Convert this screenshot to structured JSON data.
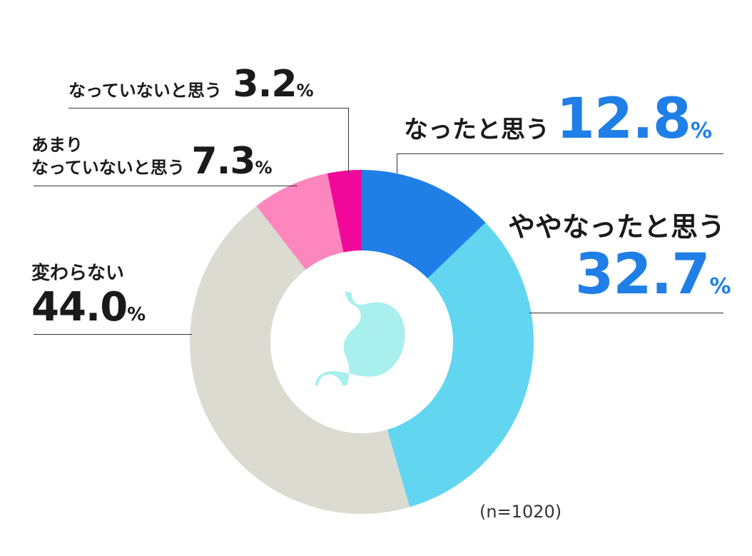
{
  "chart_data": {
    "type": "donut",
    "title": "",
    "note": "(n=1020)",
    "unit_symbol": "%",
    "slices": [
      {
        "label": "なったと思う",
        "value": 12.8,
        "color": "#1f7fe6"
      },
      {
        "label": "ややなったと思う",
        "value": 32.7,
        "color": "#62d6f0"
      },
      {
        "label": "変わらない",
        "value": 44.0,
        "color": "#dcdbd1"
      },
      {
        "label": "あまり\nなっていないと思う",
        "value": 7.3,
        "color": "#fc86bd"
      },
      {
        "label": "なっていないと思う",
        "value": 3.2,
        "color": "#f2079b"
      }
    ],
    "center_icon": "stomach-icon",
    "center_icon_color": "#a9efee"
  },
  "labels": {
    "s0_text": "なったと思う",
    "s0_value": "12.8",
    "s1_text": "ややなったと思う",
    "s1_value": "32.7",
    "s2_text": "変わらない",
    "s2_value": "44.0",
    "s3_line1": "あまり",
    "s3_line2": "なっていないと思う",
    "s3_value": "7.3",
    "s4_text": "なっていないと思う",
    "s4_value": "3.2",
    "percent": "%",
    "note": "(n=1020)"
  }
}
